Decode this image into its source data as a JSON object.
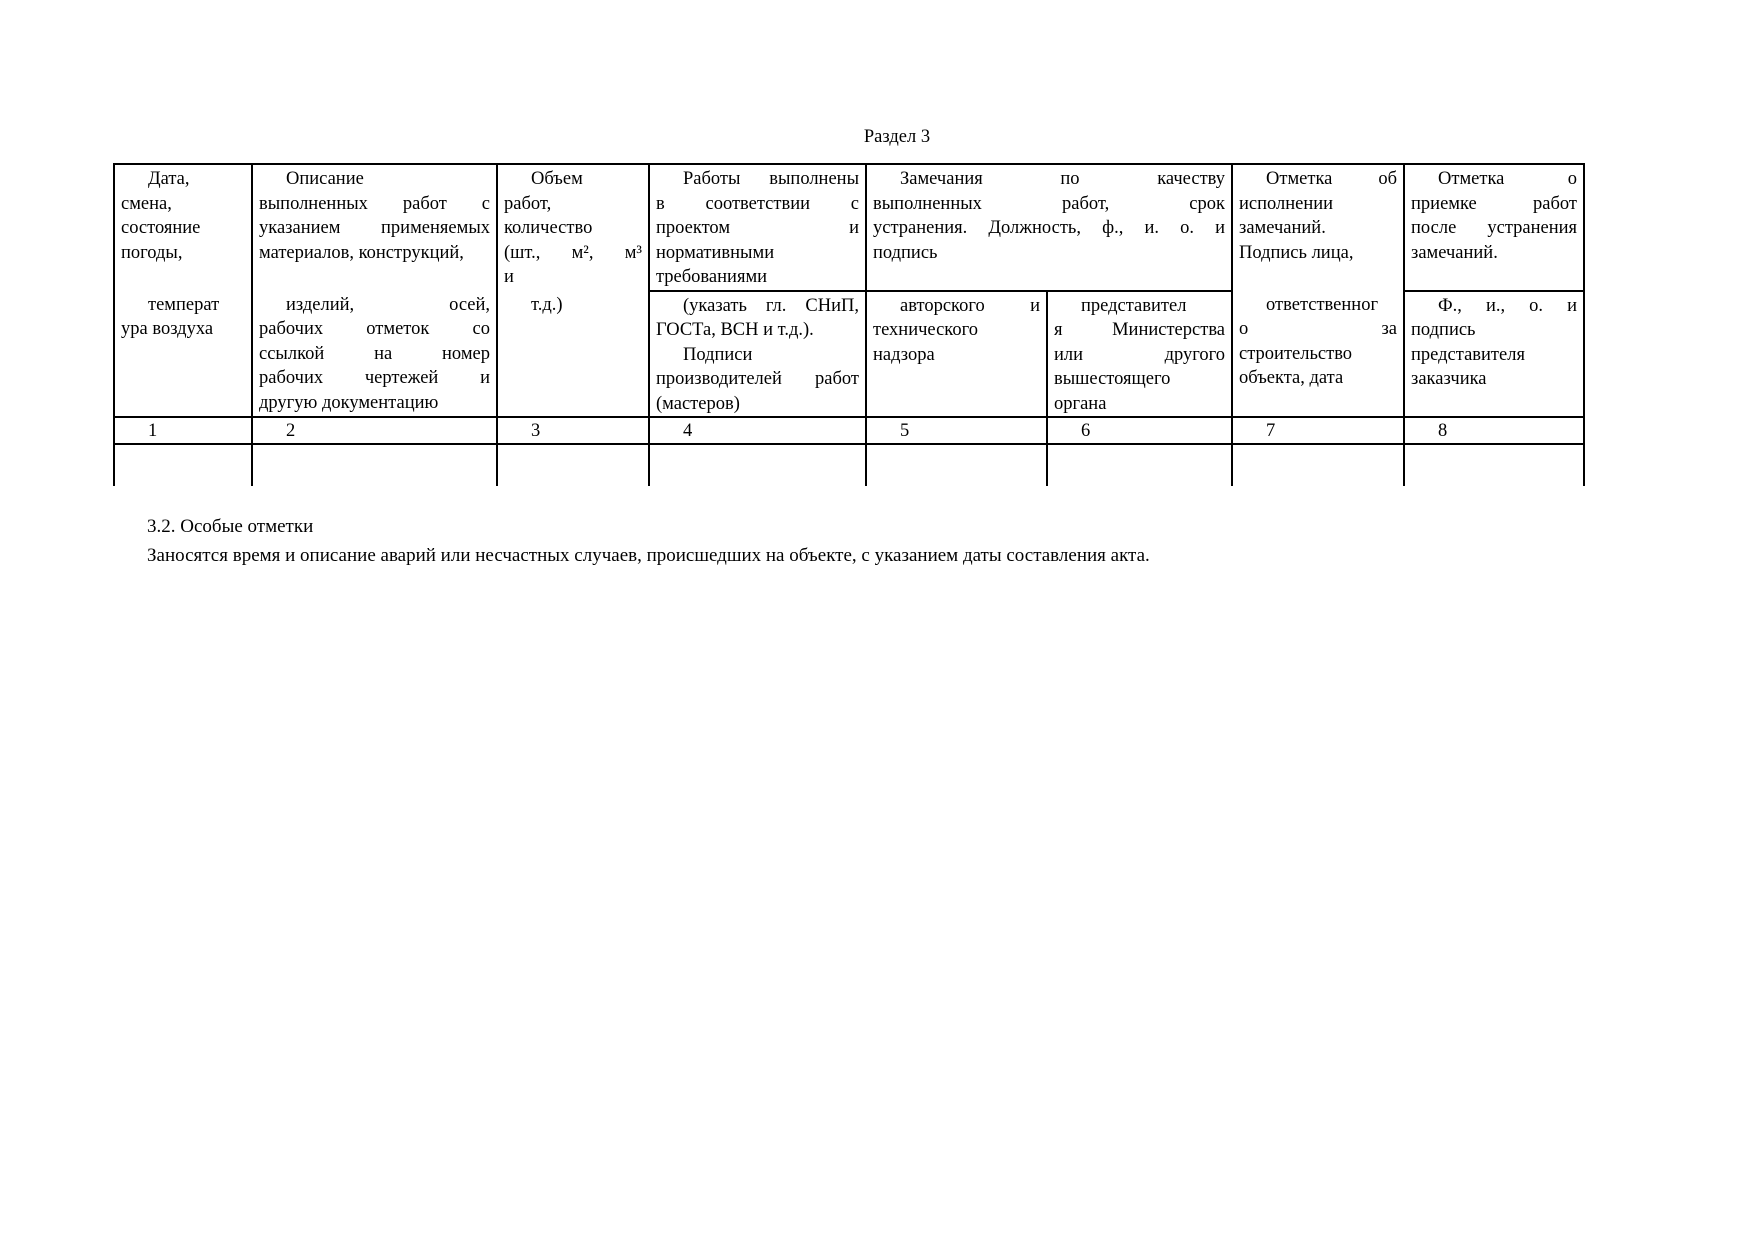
{
  "page": {
    "title": "Раздел 3",
    "notes_heading": "3.2. Особые отметки",
    "notes_text": "Заносятся время и описание аварий или несчастных случаев, происшедших на объекте, с указанием даты составления акта."
  },
  "colors": {
    "background": "#ffffff",
    "text": "#000000",
    "border": "#000000"
  },
  "table": {
    "column_numbers": [
      "1",
      "2",
      "3",
      "4",
      "5",
      "6",
      "7",
      "8"
    ],
    "cells": {
      "r1c1": {
        "paragraphs": [
          {
            "lines": [
              "Дата,",
              "смена,",
              "состояние",
              "погоды,"
            ]
          }
        ]
      },
      "r2c1": {
        "paragraphs": [
          {
            "lines": [
              "температ",
              "ура воздуха"
            ]
          }
        ]
      },
      "r1c2": {
        "paragraphs": [
          {
            "lines": [
              "Описание",
              "выполненных работ с",
              "указанием применяемых",
              "материалов, конструкций,"
            ]
          }
        ]
      },
      "r2c2": {
        "paragraphs": [
          {
            "lines": [
              "изделий, осей,",
              "рабочих отметок со",
              "ссылкой на номер",
              "рабочих чертежей и",
              "другую документацию"
            ]
          }
        ]
      },
      "r1c3": {
        "paragraphs": [
          {
            "lines": [
              "Объем",
              "работ,",
              "количество",
              "(шт., м², м³",
              "и"
            ]
          }
        ]
      },
      "r2c3": {
        "paragraphs": [
          {
            "lines": [
              "т.д.)"
            ]
          }
        ]
      },
      "r1c4": {
        "paragraphs": [
          {
            "lines": [
              "Работы выполнены",
              "в соответствии с",
              "проектом и",
              "нормативными",
              "требованиями"
            ]
          }
        ]
      },
      "r2c4": {
        "paragraphs": [
          {
            "lines": [
              "(указать гл. СНиП,",
              "ГОСТа, ВСН и т.д.)."
            ]
          },
          {
            "lines": [
              "Подписи",
              "производителей работ",
              "(мастеров)"
            ]
          }
        ]
      },
      "r1c56": {
        "paragraphs": [
          {
            "lines": [
              "Замечания по качеству",
              "выполненных работ, срок",
              "устранения. Должность, ф., и. о. и",
              "подпись"
            ]
          }
        ]
      },
      "r2c5": {
        "paragraphs": [
          {
            "lines": [
              "авторского и",
              "технического",
              "надзора"
            ]
          }
        ]
      },
      "r2c6": {
        "paragraphs": [
          {
            "lines": [
              "представител",
              "я Министерства",
              "или другого",
              "вышестоящего",
              "органа"
            ]
          }
        ]
      },
      "r1c7": {
        "paragraphs": [
          {
            "lines": [
              "Отметка об",
              "исполнении",
              "замечаний.",
              "Подпись лица,"
            ]
          }
        ]
      },
      "r2c7": {
        "paragraphs": [
          {
            "lines": [
              "ответственног",
              "о за",
              "строительство",
              "объекта, дата"
            ]
          }
        ]
      },
      "r1c8": {
        "paragraphs": [
          {
            "lines": [
              "Отметка о",
              "приемке работ",
              "после устранения",
              "замечаний."
            ]
          }
        ]
      },
      "r2c8": {
        "paragraphs": [
          {
            "lines": [
              "Ф., и., о. и",
              "подпись",
              "представителя",
              "заказчика"
            ]
          }
        ]
      }
    }
  }
}
